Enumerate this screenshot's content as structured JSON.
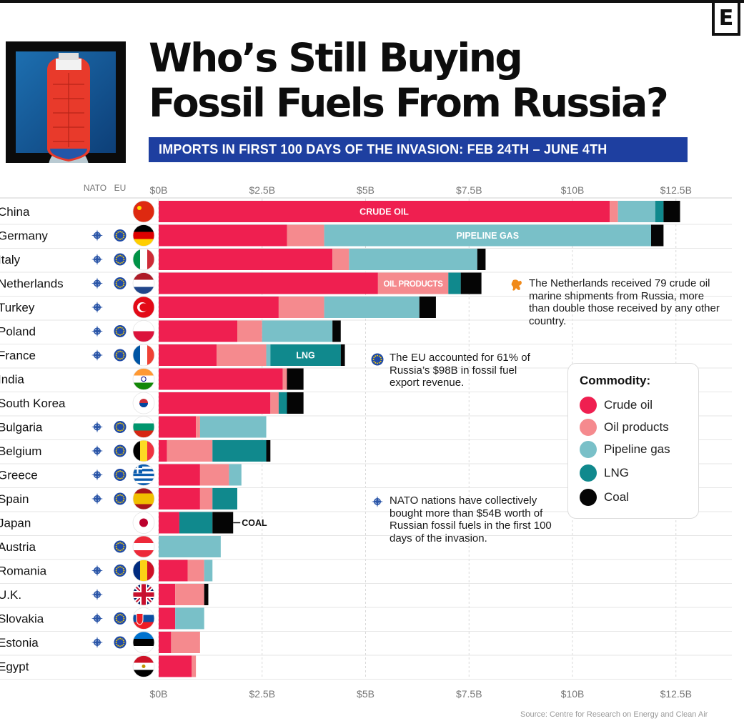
{
  "brand": {
    "logo": "E"
  },
  "header": {
    "title_line1": "Who’s Still Buying",
    "title_line2": "Fossil Fuels From Russia?",
    "subtitle": "IMPORTS IN FIRST 100 DAYS OF THE INVASION:  FEB 24TH – JUNE 4TH"
  },
  "columns": {
    "nato": "NATO",
    "eu": "EU"
  },
  "colors": {
    "crude_oil": "#ef1f50",
    "oil_products": "#f58a8e",
    "pipeline_gas": "#79c0c8",
    "lng": "#10898d",
    "coal": "#050505",
    "subtitle_bg": "#1e3fa0"
  },
  "chart_data": {
    "type": "bar",
    "orientation": "horizontal",
    "stacked": true,
    "title": "Who’s Still Buying Fossil Fuels From Russia?",
    "subtitle": "IMPORTS IN FIRST 100 DAYS OF THE INVASION:  FEB 24TH – JUNE 4TH",
    "xlim": [
      0,
      13.5
    ],
    "x_ticks": [
      "$0B",
      "$2.5B",
      "$5B",
      "$7.5B",
      "$10B",
      "$12.5B"
    ],
    "x_tick_values": [
      0,
      2.5,
      5,
      7.5,
      10,
      12.5
    ],
    "grid": true,
    "categories": [
      "China",
      "Germany",
      "Italy",
      "Netherlands",
      "Turkey",
      "Poland",
      "France",
      "India",
      "South Korea",
      "Bulgaria",
      "Belgium",
      "Greece",
      "Spain",
      "Japan",
      "Austria",
      "Romania",
      "U.K.",
      "Slovakia",
      "Estonia",
      "Egypt"
    ],
    "nato": [
      false,
      true,
      true,
      true,
      true,
      true,
      true,
      false,
      false,
      true,
      true,
      true,
      true,
      false,
      false,
      true,
      true,
      true,
      true,
      false
    ],
    "eu": [
      false,
      true,
      true,
      true,
      false,
      true,
      true,
      false,
      false,
      true,
      true,
      true,
      true,
      false,
      true,
      true,
      false,
      true,
      true,
      false
    ],
    "series": [
      {
        "name": "Crude oil",
        "color": "#ef1f50",
        "values": [
          10.9,
          3.1,
          4.2,
          5.3,
          2.9,
          1.9,
          1.4,
          3.0,
          2.7,
          0.9,
          0.2,
          1.0,
          1.0,
          0.5,
          0.0,
          0.7,
          0.4,
          0.4,
          0.3,
          0.8
        ]
      },
      {
        "name": "Oil products",
        "color": "#f58a8e",
        "values": [
          0.2,
          0.9,
          0.4,
          1.7,
          1.1,
          0.6,
          1.2,
          0.1,
          0.2,
          0.1,
          1.1,
          0.7,
          0.3,
          0.0,
          0.0,
          0.4,
          0.7,
          0.0,
          0.7,
          0.1
        ]
      },
      {
        "name": "Pipeline gas",
        "color": "#79c0c8",
        "values": [
          0.9,
          7.9,
          3.1,
          0.0,
          2.3,
          1.7,
          0.1,
          0.0,
          0.0,
          1.6,
          0.0,
          0.3,
          0.0,
          0.0,
          1.5,
          0.2,
          0.0,
          0.7,
          0.0,
          0.0
        ]
      },
      {
        "name": "LNG",
        "color": "#10898d",
        "values": [
          0.2,
          0.0,
          0.0,
          0.3,
          0.0,
          0.0,
          1.7,
          0.0,
          0.2,
          0.0,
          1.3,
          0.0,
          0.6,
          0.8,
          0.0,
          0.0,
          0.0,
          0.0,
          0.0,
          0.0
        ]
      },
      {
        "name": "Coal",
        "color": "#050505",
        "values": [
          0.4,
          0.3,
          0.2,
          0.5,
          0.4,
          0.2,
          0.1,
          0.4,
          0.4,
          0.0,
          0.1,
          0.0,
          0.0,
          0.5,
          0.0,
          0.0,
          0.1,
          0.0,
          0.0,
          0.0
        ]
      }
    ],
    "bar_labels": [
      {
        "row": 0,
        "series": 0,
        "text": "CRUDE OIL"
      },
      {
        "row": 1,
        "series": 2,
        "text": "PIPELINE GAS"
      },
      {
        "row": 3,
        "series": 1,
        "text": "OIL PRODUCTS"
      },
      {
        "row": 6,
        "series": 3,
        "text": "LNG"
      }
    ],
    "end_labels": [
      {
        "row": 13,
        "text": "COAL"
      }
    ],
    "legend": {
      "title": "Commodity:",
      "placement": "right"
    }
  },
  "legend": {
    "title": "Commodity:",
    "items": [
      "Crude oil",
      "Oil products",
      "Pipeline gas",
      "LNG",
      "Coal"
    ]
  },
  "annotations": {
    "netherlands": "The Netherlands received 79 crude oil marine shipments from Russia, more than double those received by any other country.",
    "eu": "The EU accounted for 61% of Russia’s $98B in fossil fuel export revenue.",
    "nato": "NATO nations have collectively bought more than $54B worth of Russian fossil fuels in the first 100 days of the invasion."
  },
  "source": "Source: Centre for Research on Energy and Clean Air"
}
